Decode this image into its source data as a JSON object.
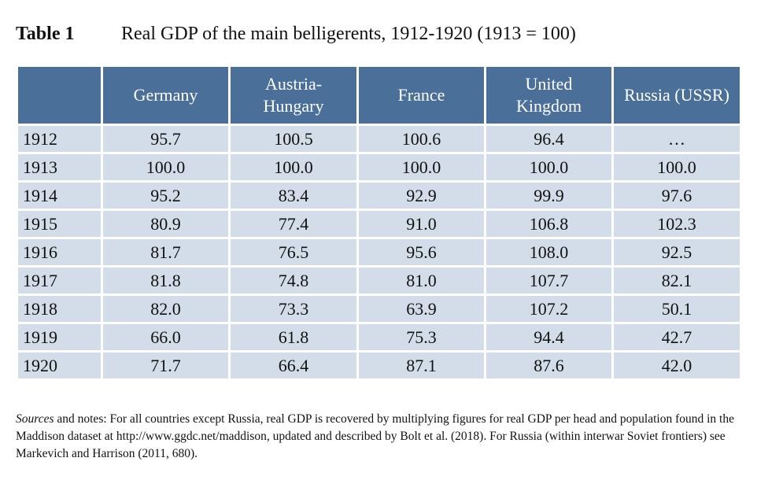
{
  "caption": {
    "label": "Table 1",
    "title": "Real GDP of the main belligerents, 1912-1920 (1913 = 100)"
  },
  "table": {
    "headers": [
      "",
      "Germany",
      "Austria-Hungary",
      "France",
      "United Kingdom",
      "Russia (USSR)"
    ],
    "header_lines": {
      "germany": "Germany",
      "austria_1": "Austria-",
      "austria_2": "Hungary",
      "france": "France",
      "uk_1": "United",
      "uk_2": "Kingdom",
      "russia": "Russia (USSR)"
    },
    "rows": [
      [
        "1912",
        "95.7",
        "100.5",
        "100.6",
        "96.4",
        "…"
      ],
      [
        "1913",
        "100.0",
        "100.0",
        "100.0",
        "100.0",
        "100.0"
      ],
      [
        "1914",
        "95.2",
        "83.4",
        "92.9",
        "99.9",
        "97.6"
      ],
      [
        "1915",
        "80.9",
        "77.4",
        "91.0",
        "106.8",
        "102.3"
      ],
      [
        "1916",
        "81.7",
        "76.5",
        "95.6",
        "108.0",
        "92.5"
      ],
      [
        "1917",
        "81.8",
        "74.8",
        "81.0",
        "107.7",
        "82.1"
      ],
      [
        "1918",
        "82.0",
        "73.3",
        "63.9",
        "107.2",
        "50.1"
      ],
      [
        "1919",
        "66.0",
        "61.8",
        "75.3",
        "94.4",
        "42.7"
      ],
      [
        "1920",
        "71.7",
        "66.4",
        "87.1",
        "87.6",
        "42.0"
      ]
    ]
  },
  "notes": {
    "sources_word": "Sources",
    "text": " and notes: For all countries except Russia, real GDP is recovered by multiplying figures for real GDP per head and population found in the Maddison dataset at http://www.ggdc.net/maddison, updated and described by Bolt et al. (2018). For Russia (within interwar Soviet frontiers) see Markevich and Harrison (2011, 680)."
  },
  "colors": {
    "header_background": "#4a6f98",
    "row_background": "#d3dde9",
    "header_text": "#ffffff"
  }
}
